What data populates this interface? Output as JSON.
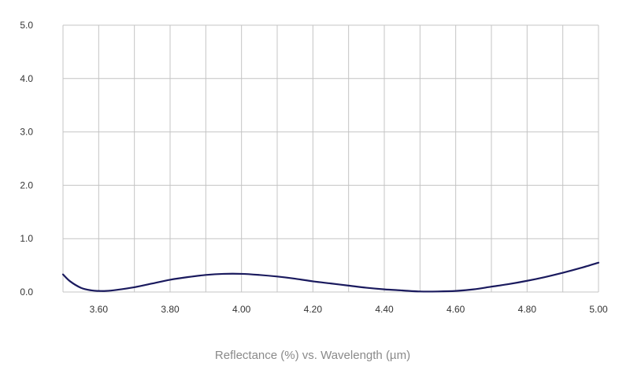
{
  "chart_data": {
    "type": "line",
    "title": "",
    "xlabel": "Reflectance (%) vs. Wavelength (µm)",
    "ylabel": "",
    "xlim": [
      3.5,
      5.0
    ],
    "ylim": [
      0,
      5
    ],
    "grid": true,
    "x_ticks": [
      "3.60",
      "3.80",
      "4.00",
      "4.20",
      "4.40",
      "4.60",
      "4.80",
      "5.00"
    ],
    "y_ticks": [
      "0.0",
      "1.0",
      "2.0",
      "3.0",
      "4.0",
      "5.0"
    ],
    "line_color": "#1a1a5e",
    "grid_color": "#c4c4c4",
    "series": [
      {
        "x": [
          3.5,
          3.52,
          3.55,
          3.58,
          3.6,
          3.62,
          3.65,
          3.7,
          3.75,
          3.8,
          3.85,
          3.9,
          3.95,
          4.0,
          4.05,
          4.1,
          4.15,
          4.2,
          4.25,
          4.3,
          4.35,
          4.4,
          4.45,
          4.5,
          4.55,
          4.6,
          4.65,
          4.7,
          4.75,
          4.8,
          4.85,
          4.9,
          4.95,
          5.0
        ],
        "values": [
          0.33,
          0.2,
          0.08,
          0.03,
          0.02,
          0.02,
          0.04,
          0.09,
          0.16,
          0.23,
          0.28,
          0.32,
          0.34,
          0.34,
          0.32,
          0.29,
          0.25,
          0.2,
          0.16,
          0.12,
          0.08,
          0.05,
          0.03,
          0.01,
          0.01,
          0.02,
          0.05,
          0.1,
          0.15,
          0.21,
          0.28,
          0.36,
          0.45,
          0.55
        ]
      }
    ]
  }
}
